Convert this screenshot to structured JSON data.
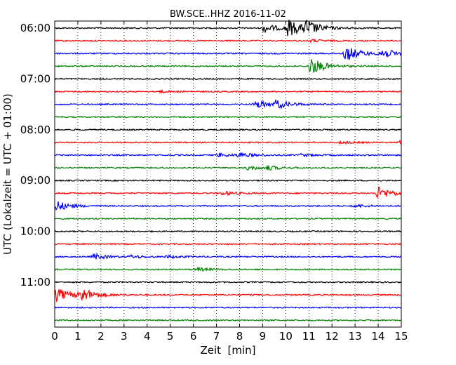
{
  "chart_data": {
    "type": "line",
    "title": "BW.SCE..HHZ 2016-11-02",
    "xlabel": "Zeit  [min]",
    "ylabel": "UTC (Lokalzeit = UTC + 01:00)",
    "xlim": [
      0,
      15
    ],
    "x_ticks": [
      "0",
      "1",
      "2",
      "3",
      "4",
      "5",
      "6",
      "7",
      "8",
      "9",
      "10",
      "11",
      "12",
      "13",
      "14",
      "15"
    ],
    "row_interval_minutes": 15,
    "y_tick_labels": [
      {
        "label": "06:00",
        "row": 0
      },
      {
        "label": "07:00",
        "row": 4
      },
      {
        "label": "08:00",
        "row": 8
      },
      {
        "label": "09:00",
        "row": 12
      },
      {
        "label": "10:00",
        "row": 16
      },
      {
        "label": "11:00",
        "row": 20
      }
    ],
    "grid": "vertical dotted lines at each minute",
    "colors": [
      "#000000",
      "#ff0000",
      "#0000ff",
      "#008000"
    ],
    "rows": [
      {
        "events": [
          {
            "t": 9.0,
            "amp": 0.7
          },
          {
            "t": 10.0,
            "amp": 1.4
          },
          {
            "t": 10.8,
            "amp": 1.1
          }
        ]
      },
      {
        "events": [
          {
            "t": 11.0,
            "amp": 0.2
          }
        ]
      },
      {
        "events": [
          {
            "t": 12.5,
            "amp": 1.3
          },
          {
            "t": 14.0,
            "amp": 0.9
          }
        ]
      },
      {
        "events": [
          {
            "t": 11.0,
            "amp": 1.4
          }
        ]
      },
      {
        "events": []
      },
      {
        "events": [
          {
            "t": 4.5,
            "amp": 0.15
          }
        ]
      },
      {
        "events": [
          {
            "t": 8.6,
            "amp": 0.7
          },
          {
            "t": 9.5,
            "amp": 0.6
          }
        ]
      },
      {
        "events": []
      },
      {
        "events": []
      },
      {
        "events": [
          {
            "t": 12.3,
            "amp": 0.2
          },
          {
            "t": 14.9,
            "amp": 0.3
          }
        ]
      },
      {
        "events": [
          {
            "t": 7.0,
            "amp": 0.3
          },
          {
            "t": 7.9,
            "amp": 0.35
          },
          {
            "t": 10.6,
            "amp": 0.2
          }
        ]
      },
      {
        "events": [
          {
            "t": 8.3,
            "amp": 0.35
          },
          {
            "t": 9.1,
            "amp": 0.3
          }
        ]
      },
      {
        "events": []
      },
      {
        "events": [
          {
            "t": 7.2,
            "amp": 0.3
          },
          {
            "t": 13.9,
            "amp": 1.1
          }
        ]
      },
      {
        "events": [
          {
            "t": 0.0,
            "amp": 0.8
          },
          {
            "t": 12.9,
            "amp": 0.25
          }
        ]
      },
      {
        "events": []
      },
      {
        "events": []
      },
      {
        "events": []
      },
      {
        "events": [
          {
            "t": 1.6,
            "amp": 0.45
          },
          {
            "t": 3.2,
            "amp": 0.25
          },
          {
            "t": 4.8,
            "amp": 0.2
          }
        ]
      },
      {
        "events": [
          {
            "t": 6.1,
            "amp": 0.25
          }
        ]
      },
      {
        "events": []
      },
      {
        "events": [
          {
            "t": 0.0,
            "amp": 1.1
          },
          {
            "t": 1.0,
            "amp": 1.2
          }
        ]
      },
      {
        "events": []
      },
      {
        "events": []
      }
    ]
  }
}
